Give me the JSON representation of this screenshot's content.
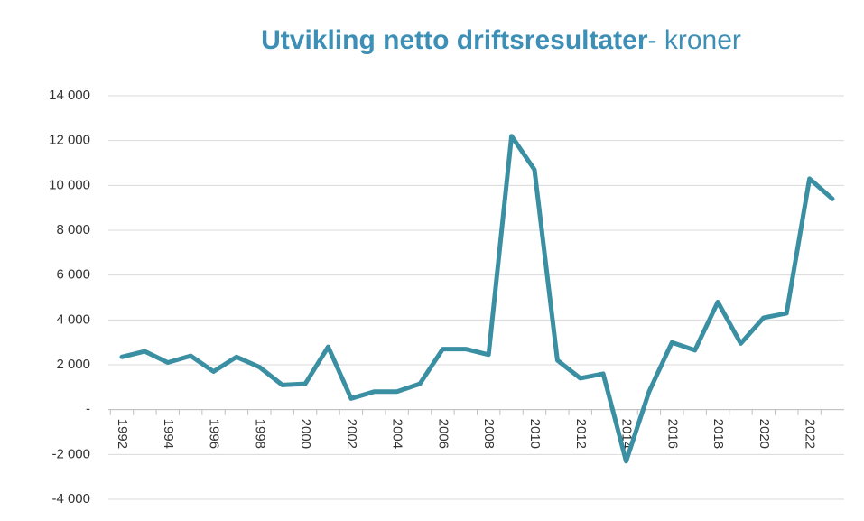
{
  "chart_data": {
    "type": "line",
    "title": {
      "main": "Utvikling netto driftsresultater",
      "suffix": "- kroner"
    },
    "x": [
      1992,
      1993,
      1994,
      1995,
      1996,
      1997,
      1998,
      1999,
      2000,
      2001,
      2002,
      2003,
      2004,
      2005,
      2006,
      2007,
      2008,
      2009,
      2010,
      2011,
      2012,
      2013,
      2014,
      2015,
      2016,
      2017,
      2018,
      2019,
      2020,
      2021,
      2022,
      2023
    ],
    "values": [
      2350,
      2600,
      2100,
      2400,
      1700,
      2350,
      1900,
      1100,
      1150,
      2800,
      500,
      800,
      800,
      1150,
      2700,
      2700,
      2450,
      12200,
      10700,
      2200,
      1400,
      1600,
      -2300,
      800,
      3000,
      2650,
      4800,
      2950,
      4100,
      4300,
      10300,
      9400
    ],
    "color": "#3a8fa3",
    "xlim": [
      1992,
      2023
    ],
    "xticks": [
      1992,
      1994,
      1996,
      1998,
      2000,
      2002,
      2004,
      2006,
      2008,
      2010,
      2012,
      2014,
      2016,
      2018,
      2020,
      2022
    ],
    "ylim": [
      -4000,
      14000
    ],
    "yticks": [
      {
        "value": -4000,
        "label": "-4 000"
      },
      {
        "value": -2000,
        "label": "-2 000"
      },
      {
        "value": 0,
        "label": "-"
      },
      {
        "value": 2000,
        "label": "2 000"
      },
      {
        "value": 4000,
        "label": "4 000"
      },
      {
        "value": 6000,
        "label": "6 000"
      },
      {
        "value": 8000,
        "label": "8 000"
      },
      {
        "value": 10000,
        "label": "10 000"
      },
      {
        "value": 12000,
        "label": "12 000"
      },
      {
        "value": 14000,
        "label": "14 000"
      }
    ],
    "grid": true
  }
}
